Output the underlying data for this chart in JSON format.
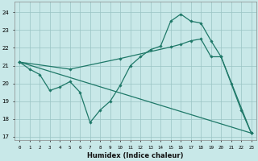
{
  "background_color": "#c8e8e8",
  "grid_color": "#99c4c4",
  "line_color": "#1e7868",
  "xlim": [
    -0.5,
    23.5
  ],
  "ylim": [
    16.8,
    24.6
  ],
  "yticks": [
    17,
    18,
    19,
    20,
    21,
    22,
    23,
    24
  ],
  "xticks": [
    0,
    1,
    2,
    3,
    4,
    5,
    6,
    7,
    8,
    9,
    10,
    11,
    12,
    13,
    14,
    15,
    16,
    17,
    18,
    19,
    20,
    21,
    22,
    23
  ],
  "xlabel": "Humidex (Indice chaleur)",
  "line1_x": [
    0,
    1,
    2,
    3,
    4,
    5,
    6,
    7,
    8,
    9,
    10,
    11,
    12,
    13,
    14,
    15,
    16,
    17,
    18,
    19,
    20,
    21,
    22,
    23
  ],
  "line1_y": [
    21.2,
    20.8,
    20.5,
    19.6,
    19.8,
    20.1,
    19.5,
    17.8,
    18.5,
    19.0,
    19.9,
    21.0,
    21.5,
    21.9,
    22.1,
    23.5,
    23.9,
    23.5,
    23.4,
    22.4,
    21.5,
    20.0,
    18.5,
    17.2
  ],
  "line2_x": [
    0,
    5,
    10,
    15,
    16,
    17,
    18,
    19,
    20,
    23
  ],
  "line2_y": [
    21.2,
    20.8,
    21.4,
    22.05,
    22.2,
    22.4,
    22.5,
    21.5,
    21.5,
    17.2
  ],
  "line3_x": [
    0,
    23
  ],
  "line3_y": [
    21.2,
    17.2
  ]
}
